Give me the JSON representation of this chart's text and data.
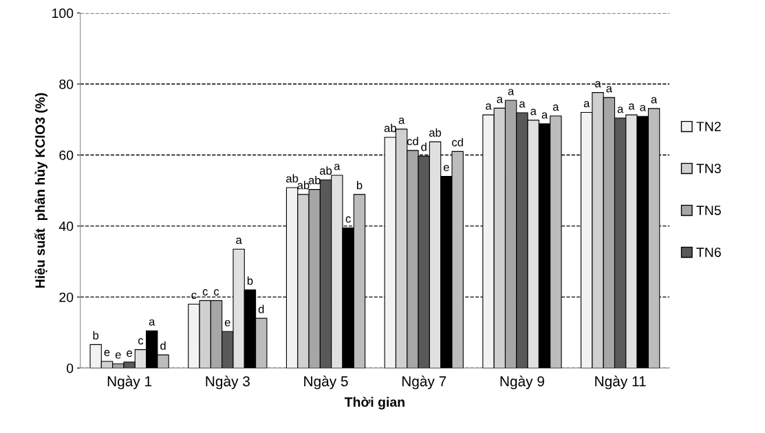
{
  "chart_data": {
    "type": "bar",
    "xlabel": "Thời gian",
    "ylabel": "Hiệu suất  phân hủy KClO3 (%)",
    "categories": [
      "Ngày 1",
      "Ngày 3",
      "Ngày 5",
      "Ngày 7",
      "Ngày 9",
      "Ngày 11"
    ],
    "series": [
      {
        "name": "TN2",
        "color": "#f2f2f2",
        "values": [
          6.6,
          18,
          50.8,
          65,
          71.3,
          72
        ],
        "value_labels": [
          "b",
          "c",
          "ab",
          "ab",
          "a",
          "a"
        ]
      },
      {
        "name": "TN3",
        "color": "#d0d0d0",
        "values": [
          1.9,
          19,
          48.9,
          67.3,
          73.2,
          77.6
        ],
        "value_labels": [
          "e",
          "c",
          "ab",
          "a",
          "a",
          "a"
        ]
      },
      {
        "name": "TN5",
        "color": "#a6a6a6",
        "values": [
          1.2,
          19,
          50.3,
          61.3,
          75.4,
          76.2
        ],
        "value_labels": [
          "e",
          "c",
          "ab",
          "cd",
          "a",
          "a"
        ]
      },
      {
        "name": "TN6",
        "color": "#595959",
        "values": [
          1.7,
          10.3,
          53,
          59.7,
          71.9,
          70.4
        ],
        "value_labels": [
          "e",
          "e",
          "ab",
          "d",
          "a",
          "a"
        ]
      },
      {
        "color": "#e0e0e0",
        "values": [
          5.2,
          33.5,
          54.3,
          63.7,
          69.8,
          71.3
        ],
        "value_labels": [
          "c",
          "a",
          "a",
          "ab",
          "a",
          "a"
        ]
      },
      {
        "color": "#000000",
        "values": [
          10.5,
          22,
          39.5,
          54,
          68.8,
          70.9
        ],
        "value_labels": [
          "a",
          "b",
          "c",
          "e",
          "a",
          "a"
        ]
      },
      {
        "color": "#bcbcbc",
        "values": [
          3.7,
          14,
          48.9,
          61,
          71,
          73.1
        ],
        "value_labels": [
          "d",
          "d",
          "b",
          "cd",
          "a",
          "a"
        ]
      }
    ],
    "ylim": [
      0,
      100
    ],
    "yticks": [
      0,
      20,
      40,
      60,
      80,
      100
    ],
    "grid": "y",
    "legend": "right"
  }
}
